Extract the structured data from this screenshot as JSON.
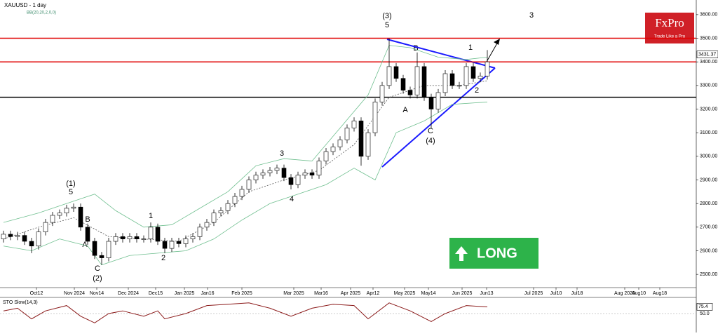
{
  "chart_data": {
    "type": "candlestick",
    "title": "XAUUSD - 1 day",
    "indicator": "BB(20,20,2,0,0)",
    "open": [
      2650,
      2670,
      2660,
      2665,
      2640,
      2620,
      2680,
      2720,
      2750,
      2760,
      2780,
      2785,
      2700,
      2640,
      2580,
      2570,
      2640,
      2660,
      2650,
      2660,
      2650,
      2650,
      2700,
      2640,
      2610,
      2640,
      2630,
      2650,
      2660,
      2700,
      2720,
      2760,
      2770,
      2800,
      2830,
      2860,
      2900,
      2920,
      2930,
      2940,
      2950,
      2910,
      2880,
      2920,
      2930,
      2920,
      2980,
      3020,
      3040,
      3070,
      3120,
      3150,
      3000,
      3100,
      3230,
      3300,
      3380,
      3330,
      3280,
      3260,
      3380,
      3250,
      3200,
      3270,
      3350,
      3300,
      3300,
      3380,
      3330,
      3340
    ],
    "high": [
      2685,
      2685,
      2680,
      2680,
      2655,
      2695,
      2735,
      2765,
      2775,
      2795,
      2800,
      2800,
      2715,
      2655,
      2595,
      2655,
      2675,
      2675,
      2675,
      2675,
      2665,
      2720,
      2715,
      2655,
      2655,
      2655,
      2665,
      2675,
      2715,
      2735,
      2775,
      2785,
      2815,
      2845,
      2875,
      2915,
      2935,
      2945,
      2955,
      2965,
      2965,
      2925,
      2935,
      2945,
      2945,
      2995,
      3035,
      3055,
      3085,
      3135,
      3165,
      3165,
      3115,
      3245,
      3315,
      3500,
      3395,
      3345,
      3295,
      3440,
      3395,
      3265,
      3285,
      3365,
      3365,
      3315,
      3395,
      3395,
      3355,
      3450
    ],
    "low": [
      2635,
      2645,
      2645,
      2625,
      2590,
      2605,
      2665,
      2705,
      2735,
      2745,
      2765,
      2685,
      2625,
      2565,
      2540,
      2555,
      2625,
      2635,
      2635,
      2635,
      2635,
      2635,
      2625,
      2590,
      2595,
      2615,
      2615,
      2635,
      2645,
      2685,
      2705,
      2745,
      2755,
      2785,
      2815,
      2845,
      2885,
      2905,
      2915,
      2925,
      2895,
      2860,
      2865,
      2905,
      2905,
      2905,
      2965,
      3005,
      3025,
      3055,
      3105,
      2960,
      2985,
      3085,
      3215,
      3285,
      3315,
      3265,
      3245,
      3245,
      3235,
      3120,
      3185,
      3255,
      3285,
      3285,
      3285,
      3315,
      3315,
      3325
    ],
    "close": [
      2670,
      2660,
      2665,
      2640,
      2620,
      2680,
      2720,
      2750,
      2760,
      2780,
      2785,
      2700,
      2640,
      2580,
      2570,
      2640,
      2660,
      2650,
      2660,
      2650,
      2650,
      2700,
      2640,
      2610,
      2640,
      2630,
      2650,
      2660,
      2700,
      2720,
      2760,
      2770,
      2800,
      2830,
      2860,
      2900,
      2920,
      2930,
      2940,
      2950,
      2910,
      2880,
      2920,
      2930,
      2920,
      2980,
      3020,
      3040,
      3070,
      3120,
      3150,
      3000,
      3100,
      3230,
      3300,
      3380,
      3330,
      3280,
      3260,
      3380,
      3250,
      3200,
      3270,
      3350,
      3300,
      3300,
      3380,
      3330,
      3340,
      3400
    ],
    "up_color": "#ffffff",
    "down_color": "#000000",
    "xlim": [
      0,
      99.3
    ],
    "xticks": [
      {
        "value": 5.2,
        "label": "Oct12"
      },
      {
        "value": 10.6,
        "label": "Nov 2024"
      },
      {
        "value": 13.8,
        "label": "Nov14"
      },
      {
        "value": 18.3,
        "label": "Dec 2024"
      },
      {
        "value": 22.2,
        "label": "Dec15"
      },
      {
        "value": 26.3,
        "label": "Jan 2025"
      },
      {
        "value": 29.6,
        "label": "Jan16"
      },
      {
        "value": 34.5,
        "label": "Feb 2025"
      },
      {
        "value": 41.9,
        "label": "Mar 2025"
      },
      {
        "value": 45.8,
        "label": "Mar16"
      },
      {
        "value": 50.0,
        "label": "Apr 2025"
      },
      {
        "value": 53.2,
        "label": "Apr12"
      },
      {
        "value": 57.7,
        "label": "May 2025"
      },
      {
        "value": 61.1,
        "label": "May14"
      },
      {
        "value": 65.9,
        "label": "Jun 2025"
      },
      {
        "value": 69.4,
        "label": "Jun13"
      },
      {
        "value": 76.1,
        "label": "Jul 2025"
      },
      {
        "value": 79.3,
        "label": "Jul10"
      },
      {
        "value": 82.3,
        "label": "Jul18"
      },
      {
        "value": 89.1,
        "label": "Aug 2025"
      },
      {
        "value": 91.1,
        "label": "Aug10"
      },
      {
        "value": 94.1,
        "label": "Aug18"
      }
    ],
    "ylim": [
      2444,
      3662
    ],
    "yticks": [
      {
        "value": 2500,
        "label": "2500.00"
      },
      {
        "value": 2600,
        "label": "2600.00"
      },
      {
        "value": 2700,
        "label": "2700.00"
      },
      {
        "value": 2800,
        "label": "2800.00"
      },
      {
        "value": 2900,
        "label": "2900.00"
      },
      {
        "value": 3000,
        "label": "3000.00"
      },
      {
        "value": 3100,
        "label": "3100.00"
      },
      {
        "value": 3200,
        "label": "3200.00"
      },
      {
        "value": 3300,
        "label": "3300.00"
      },
      {
        "value": 3400,
        "label": "3400.00"
      },
      {
        "value": 3500,
        "label": "3500.00"
      },
      {
        "value": 3600,
        "label": "3600.00"
      }
    ],
    "last_price": 3431.37,
    "hlines": [
      {
        "value": 3500,
        "color": "#e00000"
      },
      {
        "value": 3400,
        "color": "#e00000"
      },
      {
        "value": 3250,
        "color": "#000000"
      }
    ],
    "bands": [
      {
        "color": "#6fbf8f",
        "x": [
          0,
          5,
          10,
          13,
          16,
          20,
          24,
          28,
          32,
          36,
          40,
          44,
          48,
          52,
          55,
          58,
          62,
          66,
          69
        ],
        "values": [
          2720,
          2760,
          2810,
          2840,
          2770,
          2700,
          2710,
          2780,
          2850,
          2960,
          2990,
          2980,
          3120,
          3260,
          3470,
          3460,
          3420,
          3410,
          3420
        ]
      },
      {
        "color": "#6fbf8f",
        "x": [
          0,
          4,
          8,
          12,
          14,
          18,
          22,
          26,
          30,
          34,
          38,
          42,
          46,
          50,
          53,
          56,
          60,
          64,
          69
        ],
        "values": [
          2620,
          2600,
          2650,
          2620,
          2540,
          2580,
          2590,
          2600,
          2650,
          2730,
          2800,
          2840,
          2880,
          2950,
          2900,
          3100,
          3150,
          3220,
          3230
        ]
      },
      {
        "color": "#555555",
        "x": [
          0,
          5,
          10,
          15,
          20,
          25,
          30,
          35,
          40,
          45,
          50,
          55,
          60,
          65,
          69
        ],
        "values": [
          2650,
          2700,
          2740,
          2660,
          2650,
          2640,
          2720,
          2850,
          2900,
          2940,
          3050,
          3250,
          3300,
          3300,
          3320
        ]
      }
    ],
    "stoch": {
      "title": "STO Slow(14,3)",
      "color": "#8b1a1a",
      "ylim": [
        0,
        100
      ],
      "yticks": [
        {
          "value": 50,
          "label": "50.0"
        }
      ],
      "last": 75.4,
      "x": [
        0,
        2,
        4,
        6,
        9,
        11,
        13,
        15,
        17,
        20,
        22,
        23,
        26,
        29,
        32,
        35,
        38,
        41,
        44,
        47,
        50,
        52,
        55,
        58,
        61,
        63,
        66,
        69
      ],
      "values": [
        60,
        70,
        30,
        60,
        80,
        40,
        15,
        50,
        60,
        40,
        60,
        30,
        50,
        80,
        85,
        90,
        70,
        40,
        70,
        85,
        80,
        30,
        90,
        60,
        20,
        50,
        80,
        75
      ]
    }
  },
  "annotations": [
    "(3)",
    "5",
    "B",
    "A",
    "C",
    "(4)",
    "1",
    "2",
    "3",
    "(1)",
    "5",
    "B",
    "A",
    "C",
    "(2)",
    "1",
    "2",
    "3",
    "4"
  ],
  "logo": {
    "brand": "FxPro",
    "tagline": "Trade Like a Pro"
  },
  "signal": "LONG"
}
